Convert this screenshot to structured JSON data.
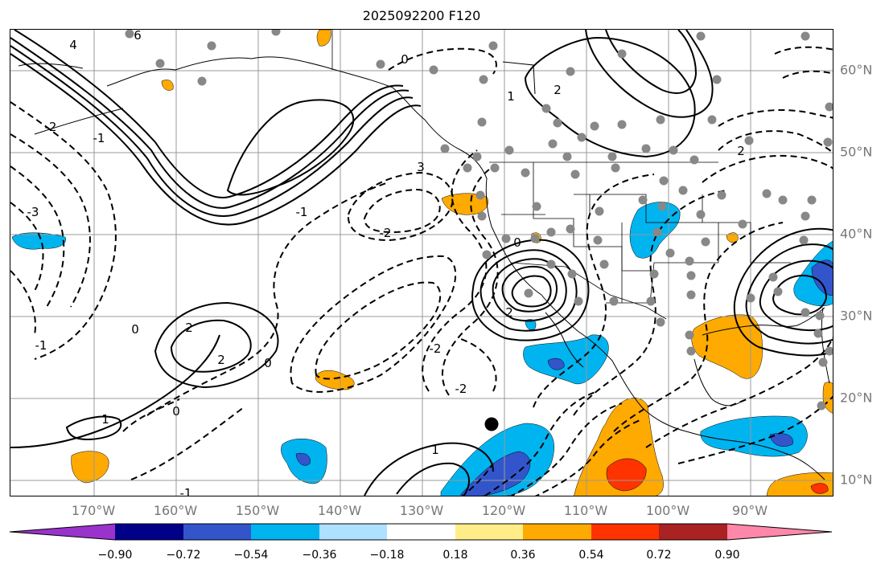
{
  "title": "2025092200 F120",
  "lon_labels": [
    "170°W",
    "160°W",
    "150°W",
    "140°W",
    "130°W",
    "120°W",
    "110°W",
    "100°W",
    "90°W"
  ],
  "lat_labels": [
    "60°N",
    "50°N",
    "40°N",
    "30°N",
    "20°N",
    "10°N"
  ],
  "colorbar": {
    "ticks": [
      "−0.90",
      "−0.72",
      "−0.54",
      "−0.36",
      "−0.18",
      "0.18",
      "0.36",
      "0.54",
      "0.72",
      "0.90"
    ],
    "colors": [
      "#9933cc",
      "#000088",
      "#3355cc",
      "#00b4f0",
      "#aee0ff",
      "#ffffff",
      "#ffee88",
      "#ffaa00",
      "#ff3300",
      "#aa2222",
      "#ff88aa"
    ]
  },
  "contour_labels": [
    "4",
    "6",
    "2",
    "1",
    "0",
    "-2",
    "-1",
    "3",
    "-3",
    "-1",
    "0",
    "-2",
    "2",
    "0",
    "-2",
    "1",
    "2",
    "-1",
    "0",
    "-1",
    "-2",
    "1",
    "0",
    "2",
    "2"
  ],
  "colors": {
    "positive_fill": "#ffaa00",
    "positive_fill_strong": "#ff3300",
    "negative_fill": "#00b4f0",
    "negative_fill_strong": "#3355cc",
    "grid": "#999999",
    "station": "#888888"
  }
}
